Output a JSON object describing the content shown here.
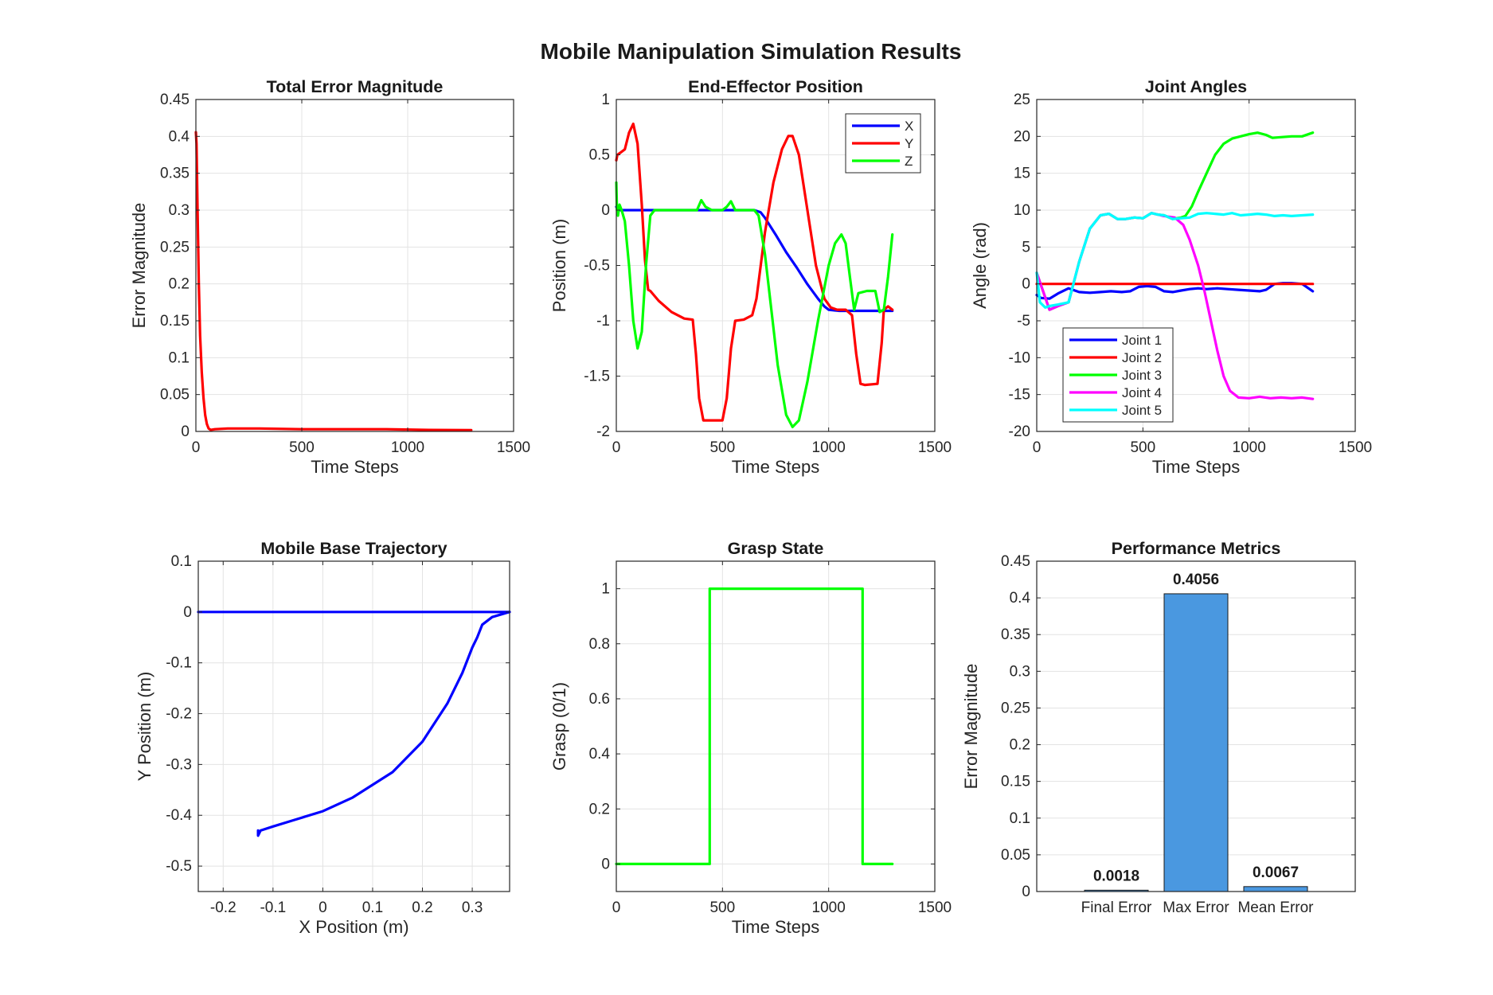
{
  "figure": {
    "title": "Mobile Manipulation Simulation Results"
  },
  "chart_data": [
    {
      "id": "error",
      "type": "line",
      "title": "Total Error Magnitude",
      "xlabel": "Time Steps",
      "ylabel": "Error Magnitude",
      "xlim": [
        0,
        1500
      ],
      "ylim": [
        0,
        0.45
      ],
      "xticks": [
        0,
        500,
        1000,
        1500
      ],
      "xtick_labels": [
        "0",
        "500",
        "1000",
        "1500"
      ],
      "yticks": [
        0,
        0.05,
        0.1,
        0.15,
        0.2,
        0.25,
        0.3,
        0.35,
        0.4,
        0.45
      ],
      "ytick_labels": [
        "0",
        "0.05",
        "0.1",
        "0.15",
        "0.2",
        "0.25",
        "0.3",
        "0.35",
        "0.4",
        "0.45"
      ],
      "grid": true,
      "series": [
        {
          "color": "#ff0000",
          "x": [
            0,
            3,
            8,
            14,
            20,
            28,
            36,
            44,
            52,
            60,
            70,
            90,
            150,
            300,
            500,
            700,
            900,
            1100,
            1300
          ],
          "y": [
            0.4056,
            0.39,
            0.3,
            0.2,
            0.13,
            0.08,
            0.045,
            0.022,
            0.01,
            0.004,
            0.002,
            0.003,
            0.004,
            0.004,
            0.003,
            0.003,
            0.003,
            0.002,
            0.0018
          ]
        }
      ]
    },
    {
      "id": "ee",
      "type": "line",
      "title": "End-Effector Position",
      "xlabel": "Time Steps",
      "ylabel": "Position (m)",
      "xlim": [
        0,
        1500
      ],
      "ylim": [
        -2,
        1
      ],
      "xticks": [
        0,
        500,
        1000,
        1500
      ],
      "xtick_labels": [
        "0",
        "500",
        "1000",
        "1500"
      ],
      "yticks": [
        -2,
        -1.5,
        -1,
        -0.5,
        0,
        0.5,
        1
      ],
      "ytick_labels": [
        "-2",
        "-1.5",
        "-1",
        "-0.5",
        "0",
        "0.5",
        "1"
      ],
      "grid": true,
      "legend": {
        "position": "top-right",
        "entries": [
          "X",
          "Y",
          "Z"
        ]
      },
      "series": [
        {
          "name": "X",
          "color": "#0000ff",
          "x": [
            0,
            5,
            10,
            20,
            100,
            200,
            400,
            600,
            650,
            680,
            700,
            750,
            800,
            850,
            900,
            950,
            980,
            1000,
            1050,
            1100,
            1200,
            1300
          ],
          "y": [
            0.03,
            0.01,
            0,
            0,
            0,
            0,
            0,
            0,
            0,
            -0.02,
            -0.07,
            -0.22,
            -0.38,
            -0.52,
            -0.67,
            -0.8,
            -0.87,
            -0.9,
            -0.91,
            -0.91,
            -0.91,
            -0.91
          ]
        },
        {
          "name": "Y",
          "color": "#ff0000",
          "x": [
            0,
            5,
            20,
            40,
            60,
            80,
            100,
            120,
            135,
            150,
            160,
            200,
            260,
            320,
            360,
            375,
            390,
            410,
            450,
            500,
            520,
            540,
            560,
            600,
            640,
            660,
            700,
            740,
            780,
            810,
            830,
            860,
            900,
            940,
            980,
            1010,
            1040,
            1080,
            1110,
            1130,
            1150,
            1170,
            1230,
            1250,
            1260,
            1280,
            1300
          ],
          "y": [
            0.45,
            0.5,
            0.52,
            0.55,
            0.7,
            0.78,
            0.6,
            0.05,
            -0.45,
            -0.72,
            -0.73,
            -0.82,
            -0.92,
            -0.98,
            -0.99,
            -1.3,
            -1.7,
            -1.9,
            -1.9,
            -1.9,
            -1.7,
            -1.25,
            -1.0,
            -0.99,
            -0.95,
            -0.8,
            -0.2,
            0.25,
            0.55,
            0.67,
            0.67,
            0.5,
            0.0,
            -0.5,
            -0.8,
            -0.88,
            -0.9,
            -0.9,
            -0.95,
            -1.3,
            -1.57,
            -1.58,
            -1.57,
            -1.2,
            -0.9,
            -0.87,
            -0.9
          ]
        },
        {
          "name": "Z",
          "color": "#00ff00",
          "x": [
            0,
            3,
            8,
            15,
            25,
            40,
            60,
            80,
            100,
            120,
            140,
            160,
            180,
            250,
            350,
            380,
            400,
            420,
            450,
            500,
            520,
            540,
            560,
            600,
            650,
            670,
            700,
            730,
            760,
            800,
            830,
            860,
            900,
            950,
            1000,
            1030,
            1060,
            1080,
            1100,
            1120,
            1140,
            1180,
            1220,
            1240,
            1260,
            1280,
            1300
          ],
          "y": [
            0.25,
            0.0,
            -0.05,
            0.05,
            0.0,
            -0.1,
            -0.5,
            -1.0,
            -1.25,
            -1.1,
            -0.5,
            -0.05,
            0.0,
            0.0,
            0.0,
            0.0,
            0.09,
            0.03,
            0.0,
            0.0,
            0.03,
            0.08,
            0.0,
            0.0,
            0.0,
            -0.05,
            -0.4,
            -0.9,
            -1.4,
            -1.85,
            -1.96,
            -1.9,
            -1.55,
            -1.0,
            -0.5,
            -0.3,
            -0.22,
            -0.3,
            -0.6,
            -0.9,
            -0.75,
            -0.73,
            -0.73,
            -0.92,
            -0.9,
            -0.6,
            -0.22
          ]
        }
      ]
    },
    {
      "id": "joints",
      "type": "line",
      "title": "Joint Angles",
      "xlabel": "Time Steps",
      "ylabel": "Angle (rad)",
      "xlim": [
        0,
        1500
      ],
      "ylim": [
        -20,
        25
      ],
      "xticks": [
        0,
        500,
        1000,
        1500
      ],
      "xtick_labels": [
        "0",
        "500",
        "1000",
        "1500"
      ],
      "yticks": [
        -20,
        -15,
        -10,
        -5,
        0,
        5,
        10,
        15,
        20,
        25
      ],
      "ytick_labels": [
        "-20",
        "-15",
        "-10",
        "-5",
        "0",
        "5",
        "10",
        "15",
        "20",
        "25"
      ],
      "grid": true,
      "legend": {
        "position": "bottom-left",
        "entries": [
          "Joint 1",
          "Joint 2",
          "Joint 3",
          "Joint 4",
          "Joint 5"
        ]
      },
      "series": [
        {
          "name": "Joint 1",
          "color": "#0000ff",
          "x": [
            0,
            20,
            60,
            100,
            150,
            200,
            250,
            300,
            350,
            400,
            440,
            480,
            520,
            560,
            600,
            640,
            680,
            720,
            760,
            800,
            850,
            900,
            950,
            1000,
            1050,
            1080,
            1120,
            1160,
            1200,
            1250,
            1300
          ],
          "y": [
            -1.5,
            -1.9,
            -2.0,
            -1.3,
            -0.6,
            -1.1,
            -1.2,
            -1.1,
            -1.0,
            -1.1,
            -1.0,
            -0.4,
            -0.3,
            -0.4,
            -1.0,
            -1.1,
            -0.9,
            -0.7,
            -0.6,
            -0.7,
            -0.6,
            -0.7,
            -0.8,
            -0.9,
            -1.0,
            -0.8,
            0.0,
            0.1,
            0.1,
            0.0,
            -1.0
          ]
        },
        {
          "name": "Joint 2",
          "color": "#ff0000",
          "x": [
            0,
            1300
          ],
          "y": [
            0,
            0
          ]
        },
        {
          "name": "Joint 3",
          "color": "#00ff00",
          "x": [
            0,
            60,
            100,
            150,
            200,
            250,
            300,
            340,
            380,
            420,
            460,
            500,
            540,
            570,
            600,
            640,
            680,
            700,
            730,
            760,
            800,
            840,
            880,
            920,
            960,
            1000,
            1040,
            1080,
            1110,
            1150,
            1200,
            1250,
            1300
          ],
          "y": [
            1.5,
            -3.5,
            -3.0,
            -2.5,
            3.0,
            7.5,
            9.3,
            9.5,
            8.8,
            8.8,
            9.0,
            8.9,
            9.6,
            9.4,
            9.3,
            8.8,
            9.0,
            9.2,
            10.5,
            12.5,
            15.0,
            17.5,
            19.0,
            19.7,
            20.0,
            20.3,
            20.5,
            20.2,
            19.8,
            19.9,
            20.0,
            20.0,
            20.5
          ]
        },
        {
          "name": "Joint 4",
          "color": "#ff00ff",
          "x": [
            0,
            60,
            100,
            150,
            200,
            250,
            300,
            340,
            380,
            420,
            460,
            500,
            540,
            570,
            600,
            650,
            690,
            720,
            760,
            790,
            820,
            850,
            880,
            910,
            950,
            1000,
            1050,
            1100,
            1150,
            1200,
            1250,
            1300
          ],
          "y": [
            1.5,
            -3.5,
            -3.0,
            -2.5,
            3.0,
            7.5,
            9.3,
            9.5,
            8.8,
            8.8,
            9.0,
            8.9,
            9.6,
            9.4,
            9.2,
            9.0,
            8.0,
            6.0,
            2.5,
            -1.0,
            -5.0,
            -9.0,
            -12.5,
            -14.5,
            -15.4,
            -15.5,
            -15.3,
            -15.5,
            -15.4,
            -15.5,
            -15.4,
            -15.6
          ]
        },
        {
          "name": "Joint 5",
          "color": "#00ffff",
          "x": [
            0,
            15,
            40,
            60,
            100,
            150,
            200,
            250,
            300,
            340,
            380,
            420,
            460,
            500,
            540,
            570,
            600,
            640,
            680,
            720,
            760,
            800,
            840,
            880,
            920,
            960,
            1000,
            1040,
            1080,
            1120,
            1160,
            1200,
            1250,
            1300
          ],
          "y": [
            1.5,
            -2.5,
            -3.2,
            -3.0,
            -2.8,
            -2.5,
            3.0,
            7.5,
            9.3,
            9.5,
            8.8,
            8.8,
            9.0,
            8.9,
            9.6,
            9.4,
            9.3,
            8.8,
            8.9,
            9.0,
            9.5,
            9.6,
            9.5,
            9.4,
            9.6,
            9.3,
            9.4,
            9.5,
            9.4,
            9.2,
            9.3,
            9.2,
            9.3,
            9.4
          ]
        }
      ]
    },
    {
      "id": "base",
      "type": "line",
      "title": "Mobile Base Trajectory",
      "xlabel": "X Position (m)",
      "ylabel": "Y Position (m)",
      "xlim": [
        -0.25,
        0.375
      ],
      "ylim": [
        -0.55,
        0.1
      ],
      "xticks": [
        -0.2,
        -0.1,
        0,
        0.1,
        0.2,
        0.3
      ],
      "xtick_labels": [
        "-0.2",
        "-0.1",
        "0",
        "0.1",
        "0.2",
        "0.3"
      ],
      "yticks": [
        -0.5,
        -0.4,
        -0.3,
        -0.2,
        -0.1,
        0,
        0.1
      ],
      "ytick_labels": [
        "-0.5",
        "-0.4",
        "-0.3",
        "-0.2",
        "-0.1",
        "0",
        "0.1"
      ],
      "grid": true,
      "series": [
        {
          "color": "#0000ff",
          "x": [
            -0.25,
            0.0,
            0.2,
            0.375
          ],
          "y": [
            0.0,
            0.0,
            0.0,
            0.0
          ]
        },
        {
          "color": "#0000ff",
          "x": [
            0.375,
            0.34,
            0.32,
            0.31,
            0.3,
            0.28,
            0.25,
            0.2,
            0.14,
            0.06,
            0.0,
            -0.06,
            -0.1,
            -0.125,
            -0.13,
            -0.13
          ],
          "y": [
            0.0,
            -0.01,
            -0.025,
            -0.05,
            -0.07,
            -0.12,
            -0.18,
            -0.255,
            -0.315,
            -0.365,
            -0.392,
            -0.41,
            -0.422,
            -0.43,
            -0.44,
            -0.43
          ]
        }
      ]
    },
    {
      "id": "grasp",
      "type": "line",
      "title": "Grasp State",
      "xlabel": "Time Steps",
      "ylabel": "Grasp (0/1)",
      "xlim": [
        0,
        1500
      ],
      "ylim": [
        -0.1,
        1.1
      ],
      "xticks": [
        0,
        500,
        1000,
        1500
      ],
      "xtick_labels": [
        "0",
        "500",
        "1000",
        "1500"
      ],
      "yticks": [
        0,
        0.2,
        0.4,
        0.6,
        0.8,
        1
      ],
      "ytick_labels": [
        "0",
        "0.2",
        "0.4",
        "0.6",
        "0.8",
        "1"
      ],
      "grid": true,
      "series": [
        {
          "color": "#00ff00",
          "x": [
            0,
            440,
            440,
            1160,
            1160,
            1300
          ],
          "y": [
            0,
            0,
            1,
            1,
            0,
            0
          ]
        }
      ]
    },
    {
      "id": "metrics",
      "type": "bar",
      "title": "Performance Metrics",
      "ylabel": "Error Magnitude",
      "xlabel": "",
      "categories": [
        "Final Error",
        "Max Error",
        "Mean Error"
      ],
      "values": [
        0.0018,
        0.4056,
        0.0067
      ],
      "value_labels": [
        "0.0018",
        "0.4056",
        "0.0067"
      ],
      "bar_color": "#4a98e0",
      "xlim": [
        0,
        4
      ],
      "ylim": [
        0,
        0.45
      ],
      "yticks": [
        0,
        0.05,
        0.1,
        0.15,
        0.2,
        0.25,
        0.3,
        0.35,
        0.4,
        0.45
      ],
      "ytick_labels": [
        "0",
        "0.05",
        "0.1",
        "0.15",
        "0.2",
        "0.25",
        "0.3",
        "0.35",
        "0.4",
        "0.45"
      ],
      "grid": true
    }
  ]
}
